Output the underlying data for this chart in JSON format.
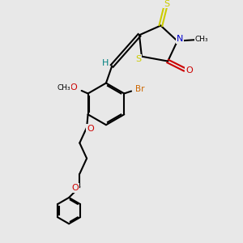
{
  "bg_color": "#e8e8e8",
  "atom_colors": {
    "S": "#cccc00",
    "N": "#0000cc",
    "O": "#cc0000",
    "Br": "#cc6600",
    "C": "#000000",
    "H": "#008080"
  },
  "bond_color": "#000000",
  "figsize": [
    3.0,
    3.0
  ],
  "dpi": 100
}
